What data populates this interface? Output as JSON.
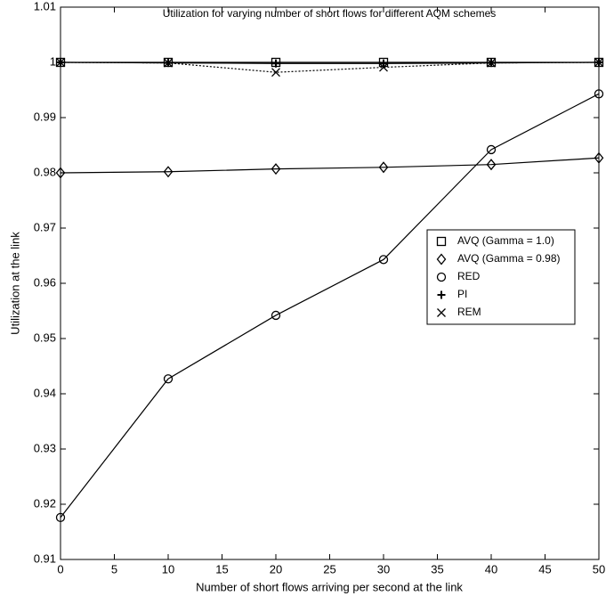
{
  "chart_data": {
    "type": "line",
    "title": "Utilization for varying number of short flows for different AQM schemes",
    "x_label": "Number of short flows arriving per second at the link",
    "y_label": "Utilization at the link",
    "x": [
      0,
      10,
      20,
      30,
      40,
      50
    ],
    "series": [
      {
        "name": "AVQ (Gamma = 1.0)",
        "color": "#000000",
        "marker": "square",
        "dash": "solid",
        "values": [
          1.0,
          1.0,
          1.0,
          1.0,
          1.0,
          1.0
        ]
      },
      {
        "name": "AVQ (Gamma = 0.98)",
        "color": "#000000",
        "marker": "diamond",
        "dash": "solid",
        "values": [
          0.98,
          0.9802,
          0.9807,
          0.981,
          0.9815,
          0.9827
        ]
      },
      {
        "name": "RED",
        "color": "#000000",
        "marker": "circle",
        "dash": "solid",
        "values": [
          0.9176,
          0.9427,
          0.9542,
          0.9643,
          0.9842,
          0.9943
        ]
      },
      {
        "name": "PI",
        "color": "#000000",
        "marker": "plus",
        "dash": "solid",
        "values": [
          1.0,
          0.9999,
          0.9998,
          0.9998,
          0.9999,
          1.0
        ]
      },
      {
        "name": "REM",
        "color": "#000000",
        "marker": "x",
        "dash": "dotted",
        "values": [
          1.0,
          0.9999,
          0.9982,
          0.9991,
          0.9999,
          1.0
        ]
      }
    ],
    "xlim": [
      0,
      50
    ],
    "xticks": [
      0,
      5,
      10,
      15,
      20,
      25,
      30,
      35,
      40,
      45,
      50
    ],
    "ylim": [
      0.91,
      1.01
    ],
    "yticks": [
      0.91,
      0.92,
      0.93,
      0.94,
      0.95,
      0.96,
      0.97,
      0.98,
      0.99,
      1,
      1.01
    ],
    "grid": false,
    "legend": "right"
  }
}
